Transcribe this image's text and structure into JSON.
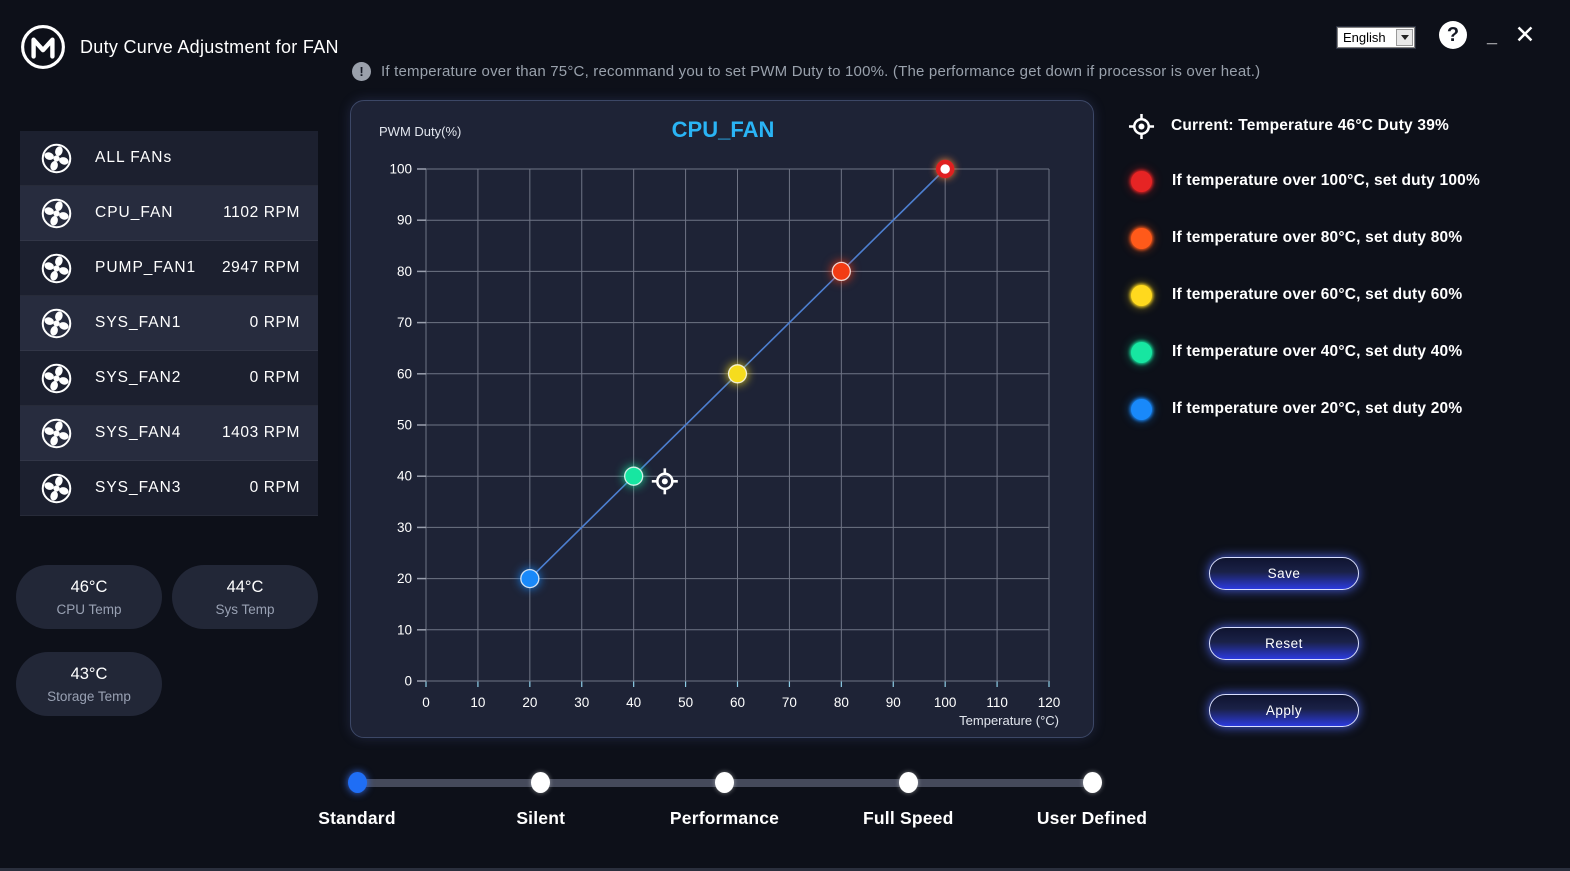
{
  "window": {
    "title": "Duty Curve Adjustment for FAN",
    "warning_icon_glyph": "!",
    "warning_text": "If temperature over than 75°C, recommand you to set PWM Duty to 100%. (The performance get down if processor is over heat.)",
    "language": "English",
    "help_glyph": "?",
    "minimize_glyph": "_",
    "close_glyph": "✕"
  },
  "sidebar": {
    "fans": [
      {
        "label": "ALL FANs",
        "rpm": ""
      },
      {
        "label": "CPU_FAN",
        "rpm": "1102 RPM"
      },
      {
        "label": "PUMP_FAN1",
        "rpm": "2947 RPM"
      },
      {
        "label": "SYS_FAN1",
        "rpm": "0 RPM"
      },
      {
        "label": "SYS_FAN2",
        "rpm": "0 RPM"
      },
      {
        "label": "SYS_FAN4",
        "rpm": "1403 RPM"
      },
      {
        "label": "SYS_FAN3",
        "rpm": "0 RPM"
      }
    ],
    "temps": [
      {
        "value": "46°C",
        "label": "CPU Temp"
      },
      {
        "value": "44°C",
        "label": "Sys Temp"
      },
      {
        "value": "43°C",
        "label": "Storage Temp"
      }
    ]
  },
  "chart_data": {
    "type": "line",
    "title": "CPU_FAN",
    "title_color": "#2ab4f5",
    "xlabel": "Temperature (°C)",
    "ylabel": "PWM Duty(%)",
    "xlim": [
      0,
      120
    ],
    "ylim": [
      0,
      100
    ],
    "xticks": [
      0,
      10,
      20,
      30,
      40,
      50,
      60,
      70,
      80,
      90,
      100,
      110,
      120
    ],
    "yticks": [
      0,
      10,
      20,
      30,
      40,
      50,
      60,
      70,
      80,
      90,
      100
    ],
    "grid": true,
    "grid_color": "#6f7485",
    "line_color": "#4d7fd0",
    "series": [
      {
        "name": "duty-curve",
        "points": [
          {
            "x": 20,
            "y": 20,
            "color": "#1989fa"
          },
          {
            "x": 40,
            "y": 40,
            "color": "#17e6a1"
          },
          {
            "x": 60,
            "y": 60,
            "color": "#f5dc1e"
          },
          {
            "x": 80,
            "y": 80,
            "color": "#f23c14"
          },
          {
            "x": 100,
            "y": 100,
            "color": "#ffffff",
            "ring": "#e02020"
          }
        ]
      }
    ],
    "current_marker": {
      "x": 46,
      "y": 39
    }
  },
  "legend": {
    "current_label": "Current: Temperature 46°C Duty 39%",
    "items": [
      {
        "color": "#e62424",
        "text": "If temperature over 100°C, set duty 100%"
      },
      {
        "color": "#ff5a1a",
        "text": "If temperature over 80°C, set duty 80%"
      },
      {
        "color": "#ffd91e",
        "text": "If temperature over 60°C, set duty 60%"
      },
      {
        "color": "#17e6a1",
        "text": "If temperature over 40°C, set duty 40%"
      },
      {
        "color": "#1989fa",
        "text": "If temperature over 20°C, set duty 20%"
      }
    ]
  },
  "actions": {
    "save": "Save",
    "reset": "Reset",
    "apply": "Apply"
  },
  "presets": {
    "options": [
      "Standard",
      "Silent",
      "Performance",
      "Full Speed",
      "User Defined"
    ],
    "selected": "Standard",
    "selected_color": "#1f6ef5"
  }
}
